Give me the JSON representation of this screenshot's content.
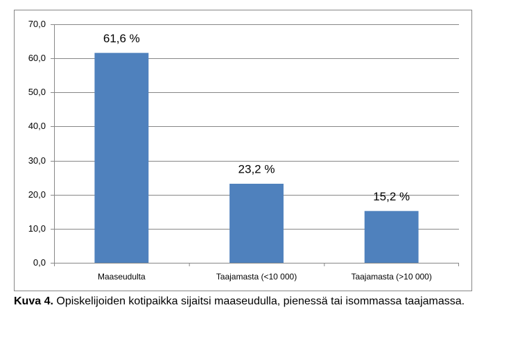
{
  "chart_data": {
    "type": "bar",
    "categories": [
      "Maaseudulta",
      "Taajamasta (<10 000)",
      "Taajamasta (>10 000)"
    ],
    "values": [
      61.6,
      23.2,
      15.2
    ],
    "value_labels": [
      "61,6 %",
      "23,2 %",
      "15,2 %"
    ],
    "color": "#4f81bd",
    "ylim": [
      0,
      70
    ],
    "yticks": [
      {
        "value": 0,
        "label": "0,0"
      },
      {
        "value": 10,
        "label": "10,0"
      },
      {
        "value": 20,
        "label": "20,0"
      },
      {
        "value": 30,
        "label": "30,0"
      },
      {
        "value": 40,
        "label": "40,0"
      },
      {
        "value": 50,
        "label": "50,0"
      },
      {
        "value": 60,
        "label": "60,0"
      },
      {
        "value": 70,
        "label": "70,0"
      }
    ],
    "grid": true
  },
  "caption": {
    "label": "Kuva 4.",
    "text": "Opiskelijoiden kotipaikka sijaitsi maaseudulla, pienessä tai isommassa taajamassa."
  }
}
